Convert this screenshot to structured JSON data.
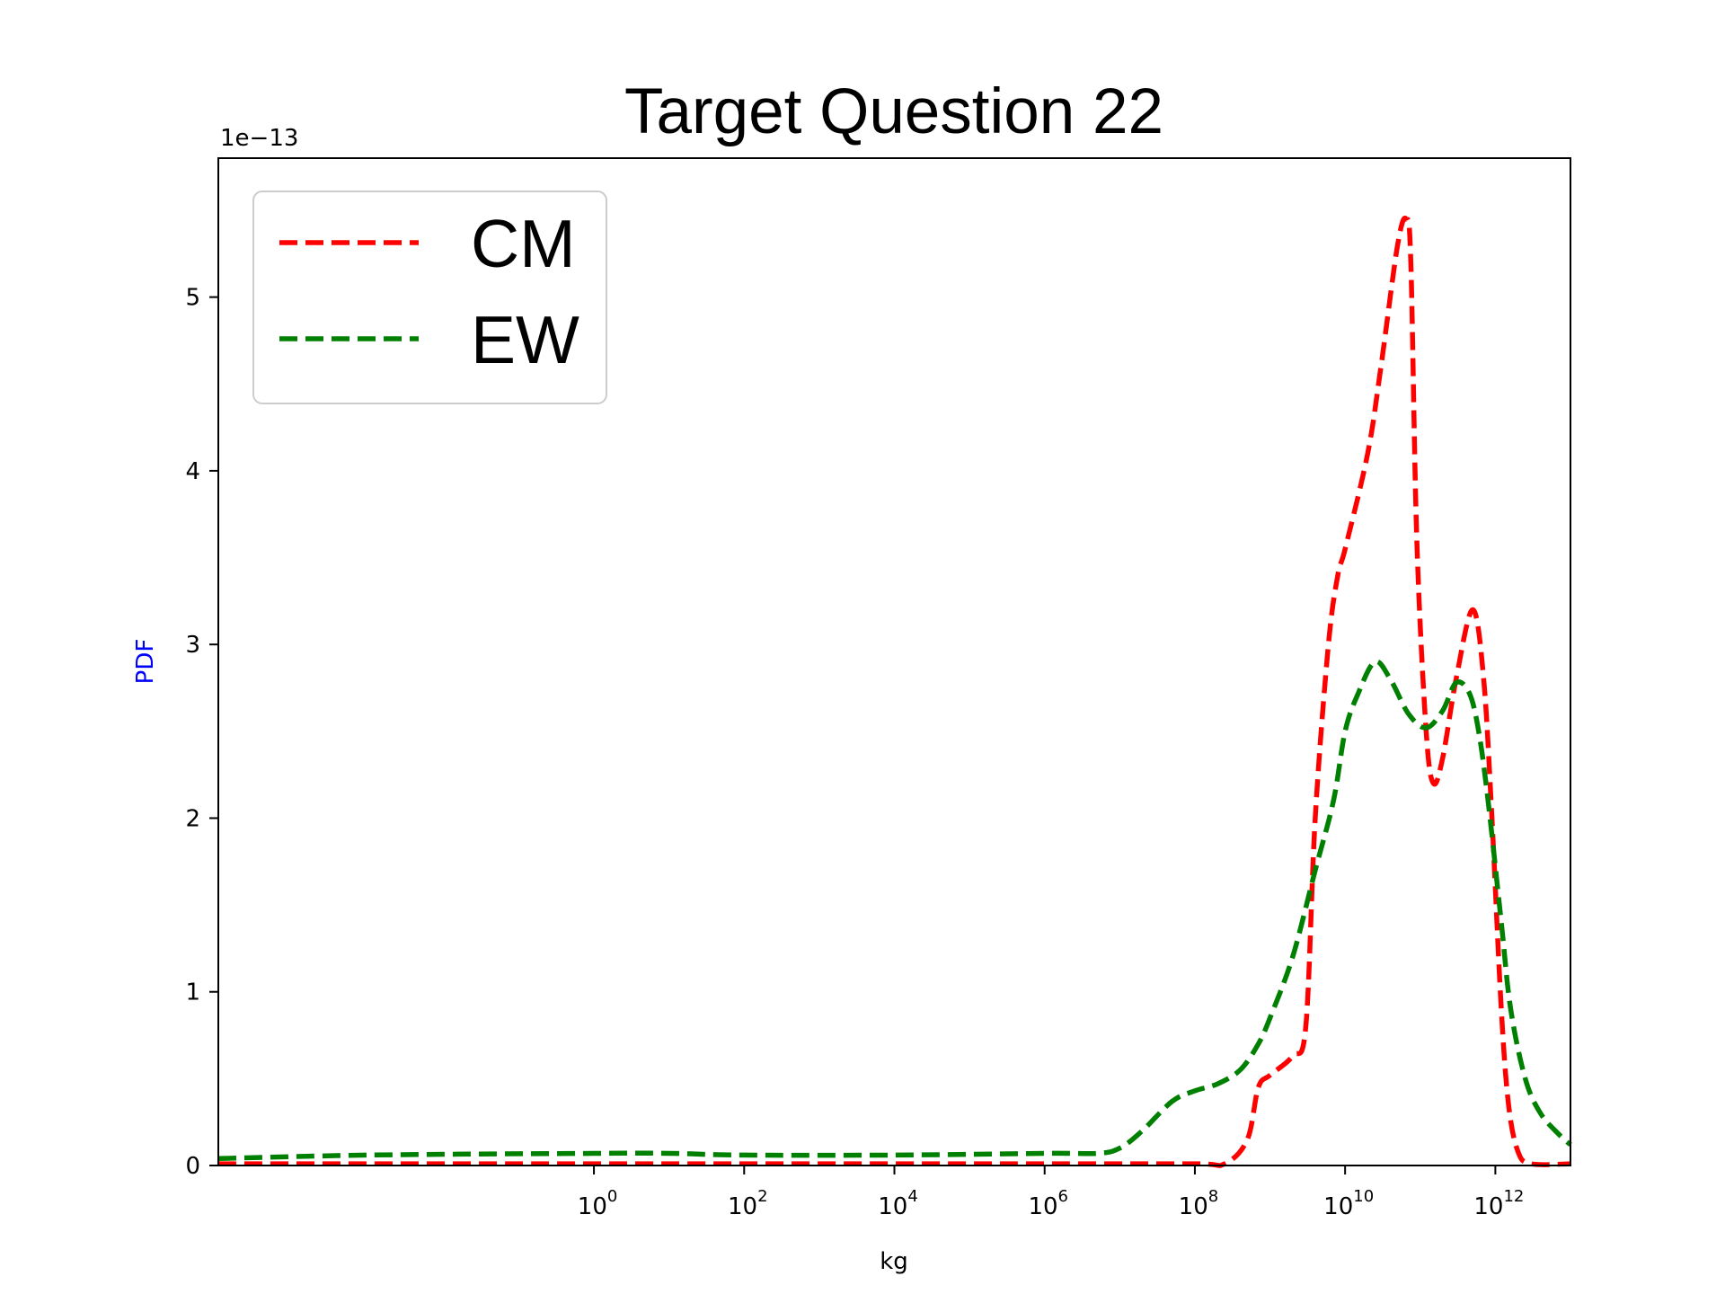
{
  "chart_data": {
    "type": "line",
    "title": "Target Question 22",
    "xlabel": "kg",
    "ylabel": "PDF",
    "ylabel_color": "#0000ff",
    "y_offset_label": "1e−13",
    "x_scale": "log",
    "xlim": [
      1e-05,
      10000000000000
    ],
    "ylim": [
      0,
      5.8
    ],
    "x_ticks": [
      {
        "value": 1,
        "base": "10",
        "exp": "0"
      },
      {
        "value": 100,
        "base": "10",
        "exp": "2"
      },
      {
        "value": 10000,
        "base": "10",
        "exp": "4"
      },
      {
        "value": 1000000,
        "base": "10",
        "exp": "6"
      },
      {
        "value": 100000000,
        "base": "10",
        "exp": "8"
      },
      {
        "value": 10000000000,
        "base": "10",
        "exp": "10"
      },
      {
        "value": 1000000000000,
        "base": "10",
        "exp": "12"
      }
    ],
    "y_ticks": [
      {
        "value": 0,
        "label": "0"
      },
      {
        "value": 1,
        "label": "1"
      },
      {
        "value": 2,
        "label": "2"
      },
      {
        "value": 3,
        "label": "3"
      },
      {
        "value": 4,
        "label": "4"
      },
      {
        "value": 5,
        "label": "5"
      }
    ],
    "legend_position": "top-left",
    "grid": false,
    "series": [
      {
        "name": "CM",
        "color": "#ff0000",
        "style": "dashed",
        "x": [
          1e-05,
          1,
          10000,
          1000000,
          100000000,
          250000000,
          500000000,
          700000000,
          1000000000,
          2000000000,
          3000000000,
          4000000000,
          6000000000,
          8000000000,
          10000000000,
          20000000000,
          30000000000,
          50000000000,
          65000000000,
          75000000000,
          90000000000,
          120000000000,
          150000000000,
          200000000000,
          300000000000,
          500000000000,
          700000000000,
          900000000000,
          1200000000000,
          1500000000000,
          2000000000000,
          3000000000000,
          10000000000000
        ],
        "y": [
          0.01,
          0.01,
          0.01,
          0.01,
          0.01,
          0.01,
          0.15,
          0.45,
          0.52,
          0.63,
          0.8,
          2.0,
          3.0,
          3.4,
          3.55,
          4.1,
          4.6,
          5.3,
          5.45,
          5.2,
          3.6,
          2.5,
          2.2,
          2.35,
          2.8,
          3.2,
          2.8,
          2.0,
          0.9,
          0.35,
          0.08,
          0.01,
          0.01
        ]
      },
      {
        "name": "EW",
        "color": "#008000",
        "style": "dashed",
        "x": [
          1e-05,
          0.001,
          1,
          10,
          100,
          10000,
          1000000,
          5000000,
          10000000,
          20000000,
          50000000,
          100000000,
          200000000,
          400000000,
          700000000,
          1000000000,
          2000000000,
          4000000000,
          7000000000,
          10000000000,
          15000000000,
          25000000000,
          40000000000,
          70000000000,
          120000000000,
          200000000000,
          300000000000,
          450000000000,
          600000000000,
          800000000000,
          1200000000000,
          1600000000000,
          2500000000000,
          4000000000000,
          7000000000000,
          10000000000000
        ],
        "y": [
          0.04,
          0.06,
          0.07,
          0.07,
          0.06,
          0.06,
          0.07,
          0.07,
          0.1,
          0.2,
          0.37,
          0.43,
          0.47,
          0.55,
          0.7,
          0.85,
          1.2,
          1.7,
          2.1,
          2.5,
          2.72,
          2.9,
          2.8,
          2.6,
          2.52,
          2.62,
          2.78,
          2.72,
          2.5,
          2.1,
          1.4,
          0.9,
          0.5,
          0.3,
          0.18,
          0.12
        ]
      }
    ]
  }
}
